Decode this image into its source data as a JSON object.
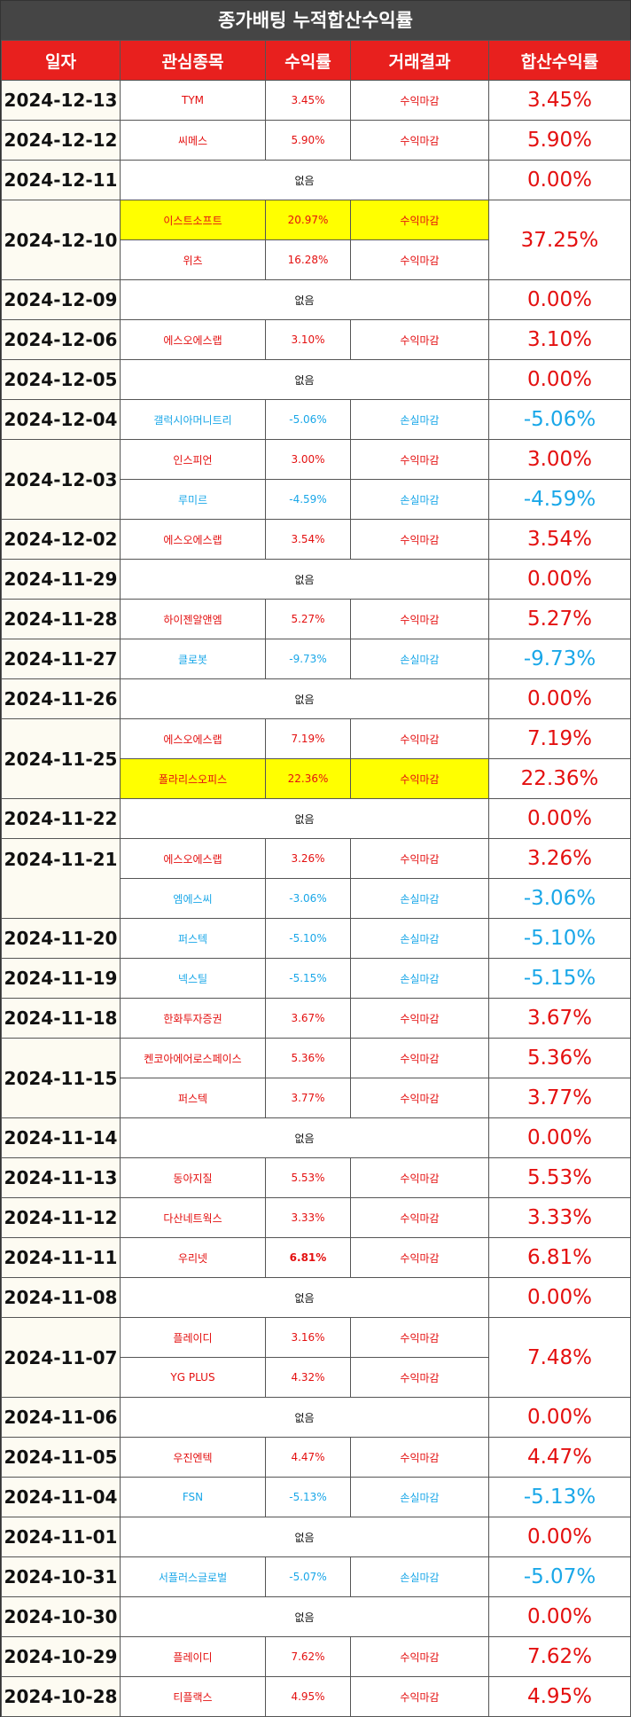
{
  "title": "종가배팅 누적합산수익률",
  "columns": [
    "일자",
    "관심종목",
    "수익률",
    "거래결과",
    "합산수익률"
  ],
  "none_label": "없음",
  "days": [
    {
      "date": "2024-12-13",
      "total": "3.45%",
      "total_sign": "up",
      "trades": [
        {
          "name": "TYM",
          "ret": "3.45%",
          "result": "수익마감",
          "sign": "up",
          "highlight": false
        }
      ]
    },
    {
      "date": "2024-12-12",
      "total": "5.90%",
      "total_sign": "up",
      "trades": [
        {
          "name": "씨메스",
          "ret": "5.90%",
          "result": "수익마감",
          "sign": "up",
          "highlight": false
        }
      ]
    },
    {
      "date": "2024-12-11",
      "total": "0.00%",
      "total_sign": "zero",
      "trades": []
    },
    {
      "date": "2024-12-10",
      "total": "37.25%",
      "total_sign": "up",
      "trades": [
        {
          "name": "이스트소프트",
          "ret": "20.97%",
          "result": "수익마감",
          "sign": "up",
          "highlight": true
        },
        {
          "name": "위츠",
          "ret": "16.28%",
          "result": "수익마감",
          "sign": "up",
          "highlight": false
        }
      ]
    },
    {
      "date": "2024-12-09",
      "total": "0.00%",
      "total_sign": "zero",
      "trades": []
    },
    {
      "date": "2024-12-06",
      "total": "3.10%",
      "total_sign": "up",
      "trades": [
        {
          "name": "에스오에스랩",
          "ret": "3.10%",
          "result": "수익마감",
          "sign": "up",
          "highlight": false
        }
      ]
    },
    {
      "date": "2024-12-05",
      "total": "0.00%",
      "total_sign": "zero",
      "trades": []
    },
    {
      "date": "2024-12-04",
      "total": "-5.06%",
      "total_sign": "down",
      "trades": [
        {
          "name": "갤럭시아머니트리",
          "ret": "-5.06%",
          "result": "손실마감",
          "sign": "down",
          "highlight": false
        }
      ]
    },
    {
      "date": "2024-12-03",
      "split_total": true,
      "trades": [
        {
          "name": "인스피언",
          "ret": "3.00%",
          "result": "수익마감",
          "sign": "up",
          "highlight": false,
          "total": "3.00%"
        },
        {
          "name": "루미르",
          "ret": "-4.59%",
          "result": "손실마감",
          "sign": "down",
          "highlight": false,
          "total": "-4.59%"
        }
      ]
    },
    {
      "date": "2024-12-02",
      "total": "3.54%",
      "total_sign": "up",
      "trades": [
        {
          "name": "에스오에스랩",
          "ret": "3.54%",
          "result": "수익마감",
          "sign": "up",
          "highlight": false
        }
      ]
    },
    {
      "date": "2024-11-29",
      "total": "0.00%",
      "total_sign": "zero",
      "trades": []
    },
    {
      "date": "2024-11-28",
      "total": "5.27%",
      "total_sign": "up",
      "trades": [
        {
          "name": "하이젠알앤엠",
          "ret": "5.27%",
          "result": "수익마감",
          "sign": "up",
          "highlight": false
        }
      ]
    },
    {
      "date": "2024-11-27",
      "total": "-9.73%",
      "total_sign": "down",
      "trades": [
        {
          "name": "클로봇",
          "ret": "-9.73%",
          "result": "손실마감",
          "sign": "down",
          "highlight": false
        }
      ]
    },
    {
      "date": "2024-11-26",
      "total": "0.00%",
      "total_sign": "zero",
      "trades": []
    },
    {
      "date": "2024-11-25",
      "split_total": true,
      "trades": [
        {
          "name": "에스오에스랩",
          "ret": "7.19%",
          "result": "수익마감",
          "sign": "up",
          "highlight": false,
          "total": "7.19%"
        },
        {
          "name": "폴라리스오피스",
          "ret": "22.36%",
          "result": "수익마감",
          "sign": "up",
          "highlight": true,
          "total": "22.36%"
        }
      ]
    },
    {
      "date": "2024-11-22",
      "total": "0.00%",
      "total_sign": "zero",
      "trades": []
    },
    {
      "date": "2024-11-21",
      "split_total": true,
      "date_top": true,
      "trades": [
        {
          "name": "에스오에스랩",
          "ret": "3.26%",
          "result": "수익마감",
          "sign": "up",
          "highlight": false,
          "total": "3.26%"
        },
        {
          "name": "엠에스씨",
          "ret": "-3.06%",
          "result": "손실마감",
          "sign": "down",
          "highlight": false,
          "total": "-3.06%"
        }
      ]
    },
    {
      "date": "2024-11-20",
      "total": "-5.10%",
      "total_sign": "down",
      "trades": [
        {
          "name": "퍼스텍",
          "ret": "-5.10%",
          "result": "손실마감",
          "sign": "down",
          "highlight": false
        }
      ]
    },
    {
      "date": "2024-11-19",
      "total": "-5.15%",
      "total_sign": "down",
      "trades": [
        {
          "name": "넥스틸",
          "ret": "-5.15%",
          "result": "손실마감",
          "sign": "down",
          "highlight": false
        }
      ]
    },
    {
      "date": "2024-11-18",
      "total": "3.67%",
      "total_sign": "up",
      "trades": [
        {
          "name": "한화투자증권",
          "ret": "3.67%",
          "result": "수익마감",
          "sign": "up",
          "highlight": false
        }
      ]
    },
    {
      "date": "2024-11-15",
      "split_total": true,
      "trades": [
        {
          "name": "켄코아에어로스페이스",
          "ret": "5.36%",
          "result": "수익마감",
          "sign": "up",
          "highlight": false,
          "total": "5.36%"
        },
        {
          "name": "퍼스텍",
          "ret": "3.77%",
          "result": "수익마감",
          "sign": "up",
          "highlight": false,
          "total": "3.77%"
        }
      ]
    },
    {
      "date": "2024-11-14",
      "total": "0.00%",
      "total_sign": "zero",
      "trades": []
    },
    {
      "date": "2024-11-13",
      "total": "5.53%",
      "total_sign": "up",
      "trades": [
        {
          "name": "동아지질",
          "ret": "5.53%",
          "result": "수익마감",
          "sign": "up",
          "highlight": false
        }
      ]
    },
    {
      "date": "2024-11-12",
      "total": "3.33%",
      "total_sign": "up",
      "trades": [
        {
          "name": "다산네트웍스",
          "ret": "3.33%",
          "result": "수익마감",
          "sign": "up",
          "highlight": false
        }
      ]
    },
    {
      "date": "2024-11-11",
      "total": "6.81%",
      "total_sign": "up",
      "trades": [
        {
          "name": "우리넷",
          "ret": "6.81%",
          "result": "수익마감",
          "sign": "up",
          "highlight": false
        }
      ]
    },
    {
      "date": "2024-11-08",
      "total": "0.00%",
      "total_sign": "zero",
      "trades": []
    },
    {
      "date": "2024-11-07",
      "total": "7.48%",
      "total_sign": "up",
      "trades": [
        {
          "name": "플레이디",
          "ret": "3.16%",
          "result": "수익마감",
          "sign": "up",
          "highlight": false
        },
        {
          "name": "YG PLUS",
          "ret": "4.32%",
          "result": "수익마감",
          "sign": "up",
          "highlight": false
        }
      ]
    },
    {
      "date": "2024-11-06",
      "total": "0.00%",
      "total_sign": "zero",
      "trades": []
    },
    {
      "date": "2024-11-05",
      "total": "4.47%",
      "total_sign": "up",
      "trades": [
        {
          "name": "우진엔텍",
          "ret": "4.47%",
          "result": "수익마감",
          "sign": "up",
          "highlight": false
        }
      ]
    },
    {
      "date": "2024-11-04",
      "total": "-5.13%",
      "total_sign": "down",
      "trades": [
        {
          "name": "FSN",
          "ret": "-5.13%",
          "result": "손실마감",
          "sign": "down",
          "highlight": false
        }
      ]
    },
    {
      "date": "2024-11-01",
      "total": "0.00%",
      "total_sign": "zero",
      "trades": []
    },
    {
      "date": "2024-10-31",
      "total": "-5.07%",
      "total_sign": "down",
      "trades": [
        {
          "name": "서플러스글로벌",
          "ret": "-5.07%",
          "result": "손실마감",
          "sign": "down",
          "highlight": false
        }
      ]
    },
    {
      "date": "2024-10-30",
      "total": "0.00%",
      "total_sign": "zero",
      "trades": []
    },
    {
      "date": "2024-10-29",
      "total": "7.62%",
      "total_sign": "up",
      "trades": [
        {
          "name": "플레이디",
          "ret": "7.62%",
          "result": "수익마감",
          "sign": "up",
          "highlight": false
        }
      ]
    },
    {
      "date": "2024-10-28",
      "total": "4.95%",
      "total_sign": "up",
      "trades": [
        {
          "name": "티플랙스",
          "ret": "4.95%",
          "result": "수익마감",
          "sign": "up",
          "highlight": false
        }
      ]
    }
  ]
}
